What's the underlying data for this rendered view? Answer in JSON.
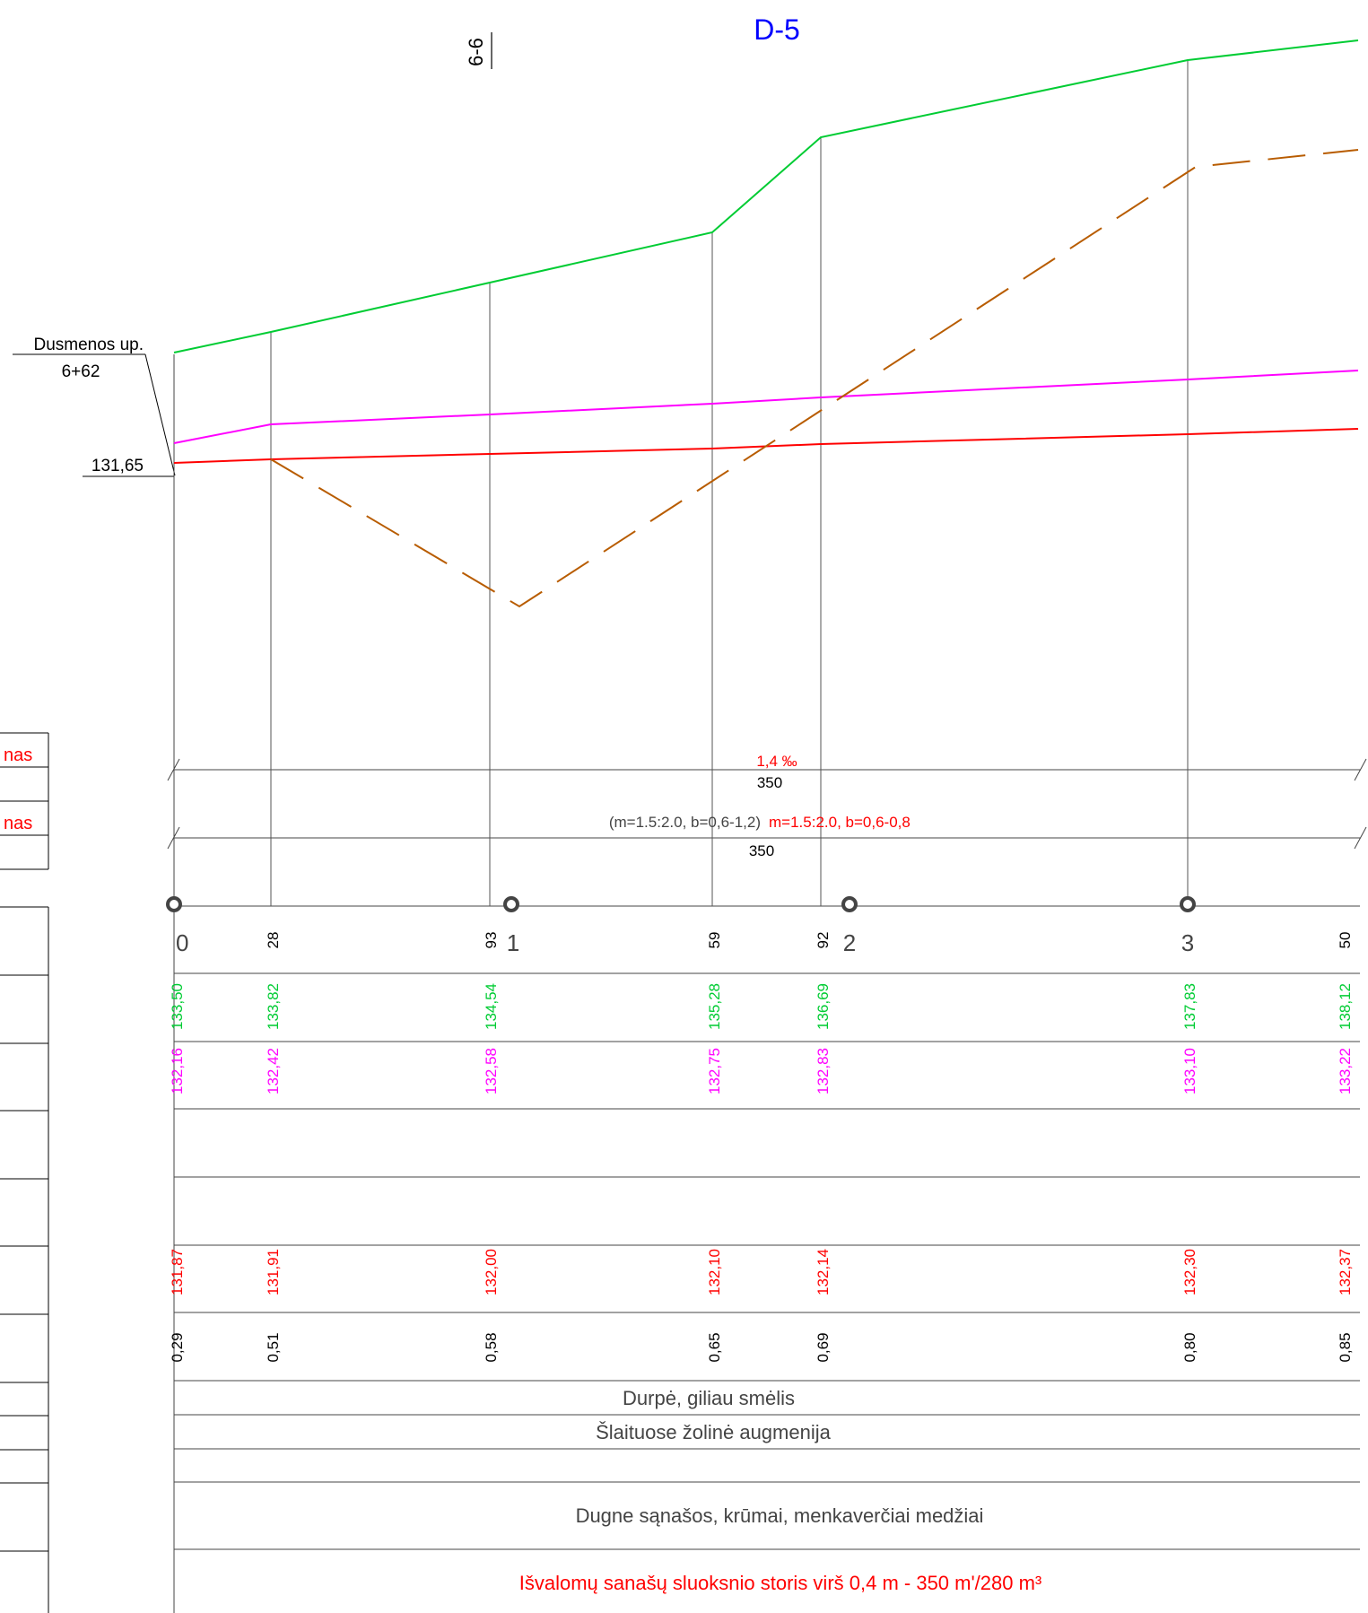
{
  "title": "D-5",
  "section_label": "6-6",
  "river_label": "Dusmenos up.",
  "river_chainage": "6+62",
  "river_elevation": "131,65",
  "slope_text": "1,4 ‰",
  "segment_length_1": "350",
  "existing_profile_text": "(m=1.5:2.0, b=0,6-1,2)",
  "design_profile_text": "m=1.5:2.0, b=0,6-0,8",
  "segment_length_2": "350",
  "left_table_fragments": [
    "nas",
    "nas"
  ],
  "picket_labels": [
    "0",
    "1",
    "2",
    "3"
  ],
  "plus_labels": [
    "28",
    "93",
    "59",
    "92",
    "50"
  ],
  "ground_elevations": [
    "133,50",
    "133,82",
    "134,54",
    "135,28",
    "136,69",
    "137,83",
    "138,12"
  ],
  "water_elevations": [
    "132,16",
    "132,42",
    "132,58",
    "132,75",
    "132,83",
    "133,10",
    "133,22"
  ],
  "design_bottom_elevations": [
    "131,87",
    "131,91",
    "132,00",
    "132,10",
    "132,14",
    "132,30",
    "132,37"
  ],
  "depths": [
    "0,29",
    "0,51",
    "0,58",
    "0,65",
    "0,69",
    "0,80",
    "0,85"
  ],
  "soil_text": "Durpė, giliau smėlis",
  "slope_vegetation_text": "Šlaituose žolinė augmenija",
  "bottom_condition_text": "Dugne sąnašos, krūmai, menkaverčiai medžiai",
  "sediment_volume_text": "Išvalomų sanašų sluoksnio storis virš 0,4 m - 350 m'/280 m³",
  "colors": {
    "title": "#0000ff",
    "ground": "#00cc33",
    "water": "#ff00ff",
    "design": "#ff0000",
    "dashed_line": "#b85c00",
    "grid": "#555555",
    "text": "#000000",
    "gray_text": "#444444"
  }
}
